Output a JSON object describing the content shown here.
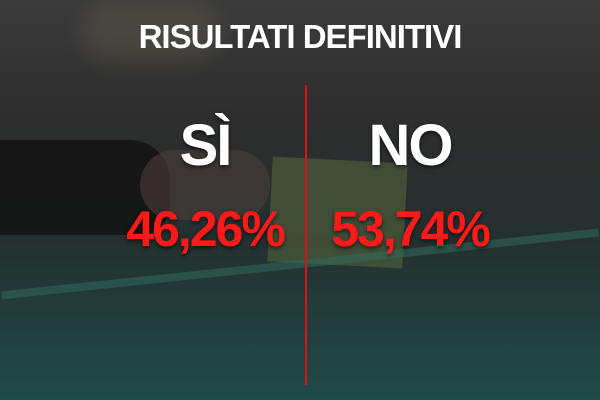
{
  "title": "RISULTATI DEFINITIVI",
  "results": [
    {
      "label": "SÌ",
      "percent": "46,26%"
    },
    {
      "label": "NO",
      "percent": "53,74%"
    }
  ],
  "colors": {
    "percent": "#ff1a1a",
    "divider": "#e01010",
    "text": "#ffffff"
  }
}
